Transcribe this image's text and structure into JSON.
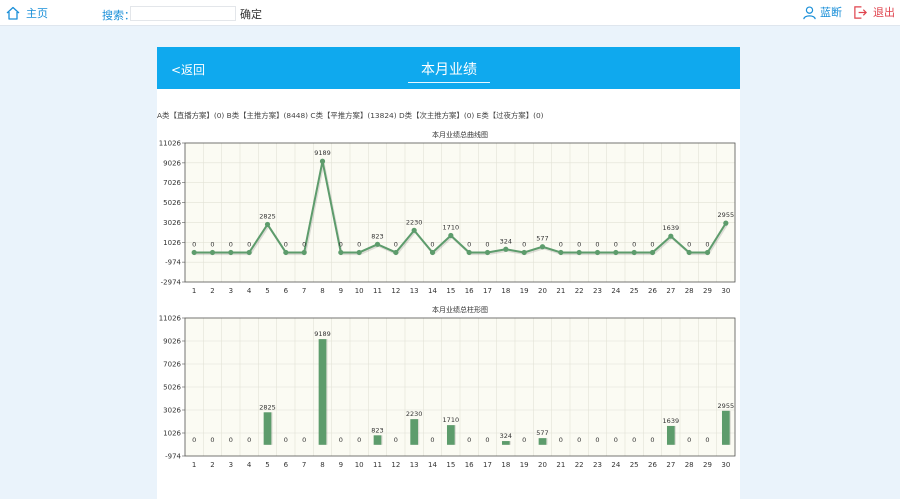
{
  "nav": {
    "home_label": "主页",
    "search_label": "搜索：",
    "search_value": "",
    "search_button": "确定",
    "user_name": "蓝断",
    "logout_label": "退出"
  },
  "panel": {
    "back_label": "<返回",
    "title": "本月业绩"
  },
  "summary": [
    {
      "category": "A类",
      "plan": "【直播方案】",
      "value": "(0)"
    },
    {
      "category": "B类",
      "plan": "【主推方案】",
      "value": "(8448)"
    },
    {
      "category": "C类",
      "plan": "【平推方案】",
      "value": "(13824)"
    },
    {
      "category": "D类",
      "plan": "【次主推方案】",
      "value": "(0)"
    },
    {
      "category": "E类",
      "plan": "【过夜方案】",
      "value": "(0)"
    }
  ],
  "colors": {
    "accent": "#0fa9ee",
    "series": "#5d9c6c",
    "plot_bg": "#fbfbf3"
  },
  "chart_data": [
    {
      "type": "line",
      "title": "本月业绩总曲线图",
      "x": [
        "1",
        "2",
        "3",
        "4",
        "5",
        "6",
        "7",
        "8",
        "9",
        "10",
        "11",
        "12",
        "13",
        "14",
        "15",
        "16",
        "17",
        "18",
        "19",
        "20",
        "21",
        "22",
        "23",
        "24",
        "25",
        "26",
        "27",
        "28",
        "29",
        "30"
      ],
      "values": [
        0,
        0,
        0,
        0,
        2825,
        0,
        0,
        9189,
        0,
        0,
        823,
        0,
        2230,
        0,
        1710,
        0,
        0,
        324,
        0,
        577,
        0,
        0,
        0,
        0,
        0,
        0,
        1639,
        0,
        0,
        2955
      ],
      "yticks": [
        11026,
        9026,
        7026,
        5026,
        3026,
        1026,
        -974,
        -2974
      ],
      "ylim": [
        -2974,
        11026
      ],
      "grid": true
    },
    {
      "type": "bar",
      "title": "本月业绩总柱形图",
      "x": [
        "1",
        "2",
        "3",
        "4",
        "5",
        "6",
        "7",
        "8",
        "9",
        "10",
        "11",
        "12",
        "13",
        "14",
        "15",
        "16",
        "17",
        "18",
        "19",
        "20",
        "21",
        "22",
        "23",
        "24",
        "25",
        "26",
        "27",
        "28",
        "29",
        "30"
      ],
      "values": [
        0,
        0,
        0,
        0,
        2825,
        0,
        0,
        9189,
        0,
        0,
        823,
        0,
        2230,
        0,
        1710,
        0,
        0,
        324,
        0,
        577,
        0,
        0,
        0,
        0,
        0,
        0,
        1639,
        0,
        0,
        2955
      ],
      "yticks": [
        11026,
        9026,
        7026,
        5026,
        3026,
        1026,
        -974
      ],
      "ylim": [
        -974,
        11026
      ],
      "grid": true
    }
  ]
}
